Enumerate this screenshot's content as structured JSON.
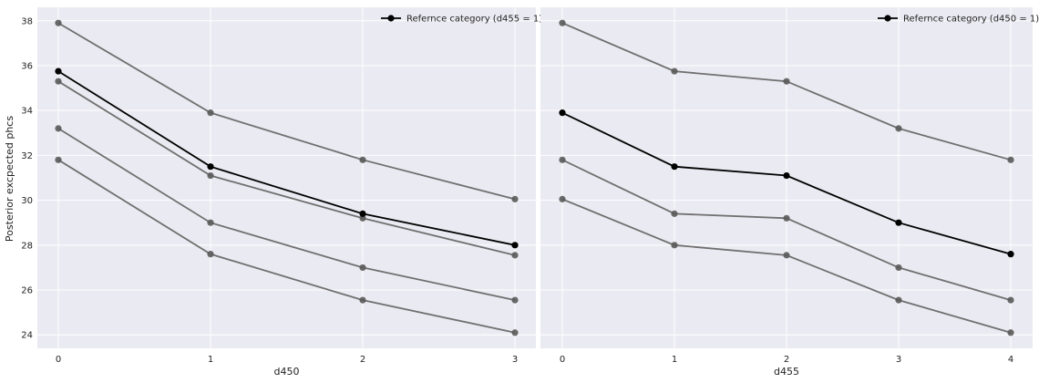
{
  "chart_data": [
    {
      "type": "line",
      "xlabel": "d450",
      "ylabel": "Posterior excpected phcs",
      "x": [
        0,
        1,
        2,
        3
      ],
      "ylim": [
        23.4,
        38.6
      ],
      "yticks": [
        24,
        26,
        28,
        30,
        32,
        34,
        36,
        38
      ],
      "grid": true,
      "legend": {
        "placement": "top-right",
        "label": "Refernce category (d455 = 1)"
      },
      "reference_series": {
        "values": [
          35.75,
          31.5,
          29.4,
          28.0
        ]
      },
      "other_series": [
        {
          "values": [
            37.9,
            33.9,
            31.8,
            30.05
          ]
        },
        {
          "values": [
            35.3,
            31.1,
            29.2,
            27.55
          ]
        },
        {
          "values": [
            33.2,
            29.0,
            27.0,
            25.55
          ]
        },
        {
          "values": [
            31.8,
            27.6,
            25.55,
            24.1
          ]
        }
      ]
    },
    {
      "type": "line",
      "xlabel": "d455",
      "ylabel": "",
      "x": [
        0,
        1,
        2,
        3,
        4
      ],
      "ylim": [
        23.4,
        38.6
      ],
      "yticks": [
        24,
        26,
        28,
        30,
        32,
        34,
        36,
        38
      ],
      "grid": true,
      "legend": {
        "placement": "top-right",
        "label": "Refernce category (d450 = 1)"
      },
      "reference_series": {
        "values": [
          33.9,
          31.5,
          31.1,
          29.0,
          27.6
        ]
      },
      "other_series": [
        {
          "values": [
            37.9,
            35.75,
            35.3,
            33.2,
            31.8
          ]
        },
        {
          "values": [
            31.8,
            29.4,
            29.2,
            27.0,
            25.55
          ]
        },
        {
          "values": [
            30.05,
            28.0,
            27.55,
            25.55,
            24.1
          ]
        }
      ]
    }
  ],
  "colors": {
    "background": "#eaeaf2",
    "grid": "#ffffff",
    "reference": "#000000",
    "other": "#707070",
    "other_marker": "#5a5a5a"
  }
}
